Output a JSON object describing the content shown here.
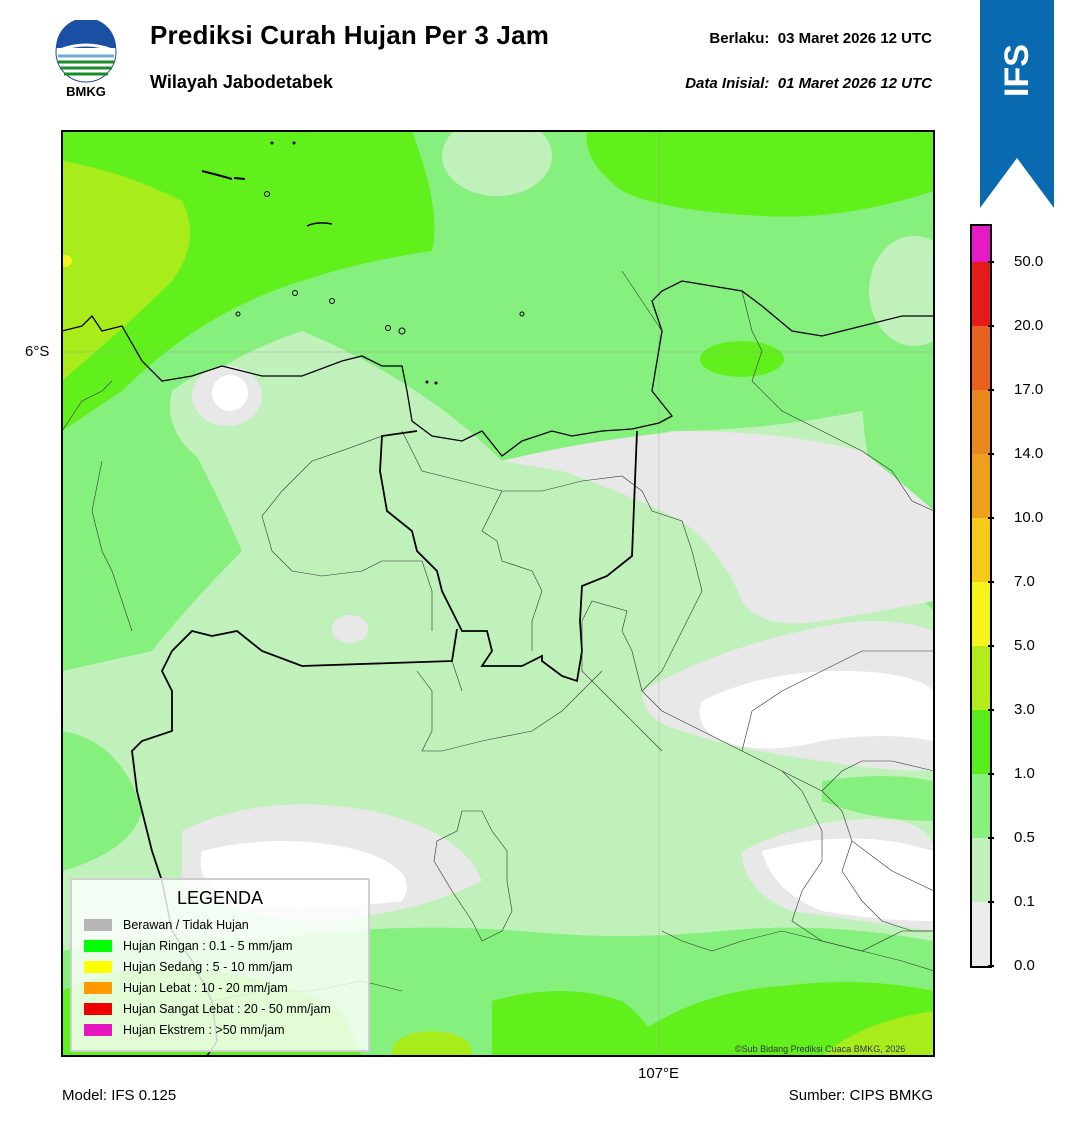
{
  "header": {
    "logo_text": "BMKG",
    "title": "Prediksi Curah Hujan Per 3 Jam",
    "subtitle": "Wilayah Jabodetabek",
    "valid_label": "Berlaku:  03 Maret 2026 12 UTC",
    "init_label": "Data Inisial:  01 Maret 2026 12 UTC",
    "banner": "IFS"
  },
  "map": {
    "lat_label": "6°S",
    "lon_label": "107°E",
    "credit": "©Sub Bidang Prediksi Cuaca BMKG, 2026"
  },
  "footer": {
    "model": "Model: IFS 0.125",
    "source": "Sumber: CIPS BMKG"
  },
  "colorbar": {
    "labels": [
      "50.0",
      "20.0",
      "17.0",
      "14.0",
      "10.0",
      "7.0",
      "5.0",
      "3.0",
      "1.0",
      "0.5",
      "0.1",
      "0.0"
    ],
    "colors": [
      "#e61bc5",
      "#e41b1b",
      "#e6621e",
      "#ea8820",
      "#ee9f1f",
      "#f6c91c",
      "#f4f51c",
      "#b3ec1c",
      "#58ee1d",
      "#88f07f",
      "#c3f1bb",
      "#ececec"
    ]
  },
  "legend": {
    "title": "LEGENDA",
    "items": [
      {
        "label": "Berawan / Tidak Hujan",
        "color": "#b6b6b6"
      },
      {
        "label": "Hujan Ringan : 0.1 - 5 mm/jam",
        "color": "#00ff00"
      },
      {
        "label": "Hujan Sedang : 5 - 10 mm/jam",
        "color": "#ffff00"
      },
      {
        "label": "Hujan Lebat : 10 - 20 mm/jam",
        "color": "#ff9900"
      },
      {
        "label": "Hujan Sangat Lebat : 20 - 50 mm/jam",
        "color": "#ee0000"
      },
      {
        "label": "Hujan Ekstrem : >50 mm/jam",
        "color": "#e815c2"
      }
    ]
  }
}
